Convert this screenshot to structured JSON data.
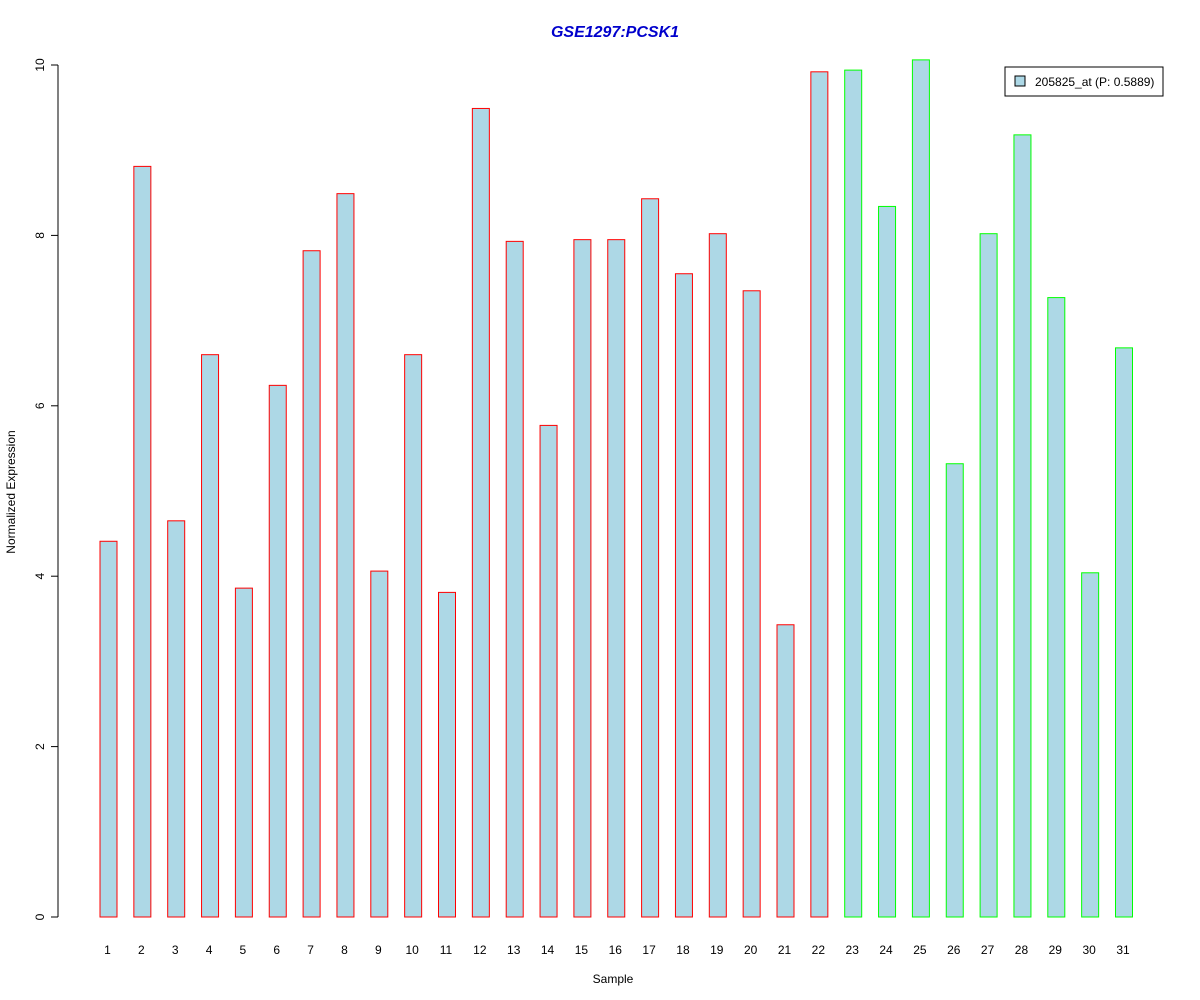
{
  "chart_data": {
    "type": "bar",
    "title": "GSE1297:PCSK1",
    "xlabel": "Sample",
    "ylabel": "Normalized Expression",
    "ylim": [
      0,
      10
    ],
    "yticks": [
      "0",
      "2",
      "4",
      "6",
      "8",
      "10"
    ],
    "grid": false,
    "legend_position": "top-right",
    "categories": [
      "1",
      "2",
      "3",
      "4",
      "5",
      "6",
      "7",
      "8",
      "9",
      "10",
      "11",
      "12",
      "13",
      "14",
      "15",
      "16",
      "17",
      "18",
      "19",
      "20",
      "21",
      "22",
      "23",
      "24",
      "25",
      "26",
      "27",
      "28",
      "29",
      "30",
      "31"
    ],
    "series": [
      {
        "name": "205825_at (P: 0.5889)",
        "fill": "#add8e6",
        "values": [
          4.41,
          8.81,
          4.65,
          6.6,
          3.86,
          6.24,
          7.82,
          8.49,
          4.06,
          6.6,
          3.81,
          9.49,
          7.93,
          5.77,
          7.95,
          7.95,
          8.43,
          7.55,
          8.02,
          7.35,
          3.43,
          9.92,
          9.94,
          8.34,
          10.06,
          5.32,
          8.02,
          9.18,
          7.27,
          4.04,
          6.68
        ],
        "groups": [
          "a",
          "a",
          "a",
          "a",
          "a",
          "a",
          "a",
          "a",
          "a",
          "a",
          "a",
          "a",
          "a",
          "a",
          "a",
          "a",
          "a",
          "a",
          "a",
          "a",
          "a",
          "a",
          "b",
          "b",
          "b",
          "b",
          "b",
          "b",
          "b",
          "b",
          "b"
        ]
      }
    ],
    "group_colors": {
      "a": "#ff0000",
      "b": "#00ff00"
    },
    "title_color": "#0000cc",
    "legend_swatch_fill": "#add8e6",
    "legend_swatch_border": "#000000"
  }
}
